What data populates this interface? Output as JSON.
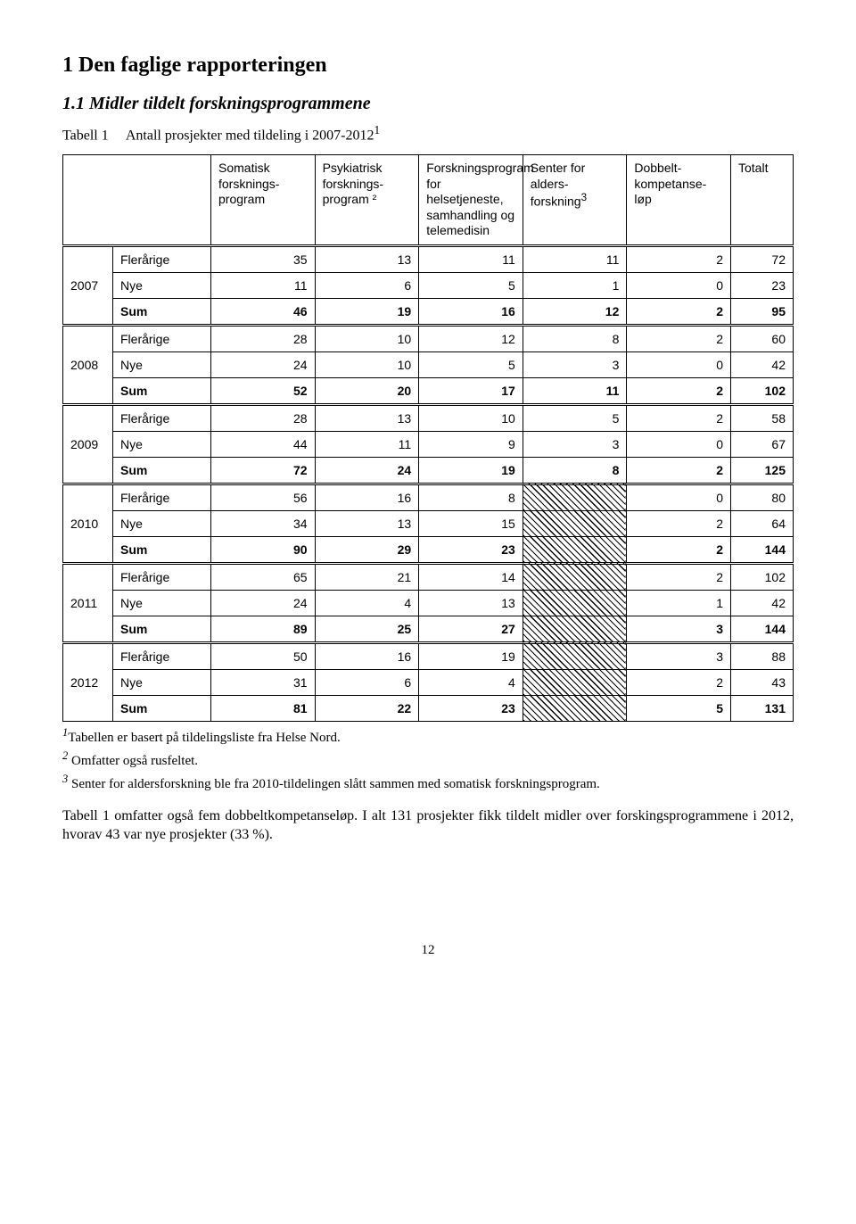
{
  "heading": "1  Den faglige rapporteringen",
  "subheading": "1.1  Midler tildelt forskningsprogrammene",
  "table": {
    "caption_prefix": "Tabell 1",
    "caption_text": "Antall prosjekter med tildeling i 2007-2012",
    "caption_sup": "1",
    "columns": [
      "",
      "",
      "Somatisk forsknings-program",
      "Psykiatrisk forsknings-program ²",
      "Forskningsprogram for helsetjeneste, samhandling og telemedisin",
      "Senter for alders-forskning",
      "Dobbelt-kompetanse-løp",
      "Totalt"
    ],
    "sup_col3": "3",
    "groups": [
      {
        "year": "2007",
        "rows": [
          {
            "label": "Flerårige",
            "v": [
              "35",
              "13",
              "11",
              "11",
              "2",
              "72"
            ],
            "sum": false
          },
          {
            "label": "Nye",
            "v": [
              "11",
              "6",
              "5",
              "1",
              "0",
              "23"
            ],
            "sum": false
          },
          {
            "label": "Sum",
            "v": [
              "46",
              "19",
              "16",
              "12",
              "2",
              "95"
            ],
            "sum": true
          }
        ],
        "hatchCol": false
      },
      {
        "year": "2008",
        "rows": [
          {
            "label": "Flerårige",
            "v": [
              "28",
              "10",
              "12",
              "8",
              "2",
              "60"
            ],
            "sum": false
          },
          {
            "label": "Nye",
            "v": [
              "24",
              "10",
              "5",
              "3",
              "0",
              "42"
            ],
            "sum": false
          },
          {
            "label": "Sum",
            "v": [
              "52",
              "20",
              "17",
              "11",
              "2",
              "102"
            ],
            "sum": true
          }
        ],
        "hatchCol": false
      },
      {
        "year": "2009",
        "rows": [
          {
            "label": "Flerårige",
            "v": [
              "28",
              "13",
              "10",
              "5",
              "2",
              "58"
            ],
            "sum": false
          },
          {
            "label": "Nye",
            "v": [
              "44",
              "11",
              "9",
              "3",
              "0",
              "67"
            ],
            "sum": false
          },
          {
            "label": "Sum",
            "v": [
              "72",
              "24",
              "19",
              "8",
              "2",
              "125"
            ],
            "sum": true
          }
        ],
        "hatchCol": false
      },
      {
        "year": "2010",
        "rows": [
          {
            "label": "Flerårige",
            "v": [
              "56",
              "16",
              "8",
              "",
              "0",
              "80"
            ],
            "sum": false
          },
          {
            "label": "Nye",
            "v": [
              "34",
              "13",
              "15",
              "",
              "2",
              "64"
            ],
            "sum": false
          },
          {
            "label": "Sum",
            "v": [
              "90",
              "29",
              "23",
              "",
              "2",
              "144"
            ],
            "sum": true
          }
        ],
        "hatchCol": true
      },
      {
        "year": "2011",
        "rows": [
          {
            "label": "Flerårige",
            "v": [
              "65",
              "21",
              "14",
              "",
              "2",
              "102"
            ],
            "sum": false
          },
          {
            "label": "Nye",
            "v": [
              "24",
              "4",
              "13",
              "",
              "1",
              "42"
            ],
            "sum": false
          },
          {
            "label": "Sum",
            "v": [
              "89",
              "25",
              "27",
              "",
              "3",
              "144"
            ],
            "sum": true
          }
        ],
        "hatchCol": true
      },
      {
        "year": "2012",
        "rows": [
          {
            "label": "Flerårige",
            "v": [
              "50",
              "16",
              "19",
              "",
              "3",
              "88"
            ],
            "sum": false
          },
          {
            "label": "Nye",
            "v": [
              "31",
              "6",
              "4",
              "",
              "2",
              "43"
            ],
            "sum": false
          },
          {
            "label": "Sum",
            "v": [
              "81",
              "22",
              "23",
              "",
              "5",
              "131"
            ],
            "sum": true
          }
        ],
        "hatchCol": true
      }
    ]
  },
  "footnotes": {
    "f1_sup": "1",
    "f1": "Tabellen er basert på tildelingsliste fra Helse Nord.",
    "f2_sup": "2",
    "f2": " Omfatter også rusfeltet.",
    "f3_sup": "3",
    "f3": " Senter for aldersforskning ble fra 2010-tildelingen slått sammen med somatisk forskningsprogram."
  },
  "paragraph": "Tabell 1 omfatter også fem dobbeltkompetanseløp.  I alt 131 prosjekter fikk tildelt midler over forskingsprogrammene i 2012, hvorav 43 var nye prosjekter (33 %).",
  "page_number": "12"
}
